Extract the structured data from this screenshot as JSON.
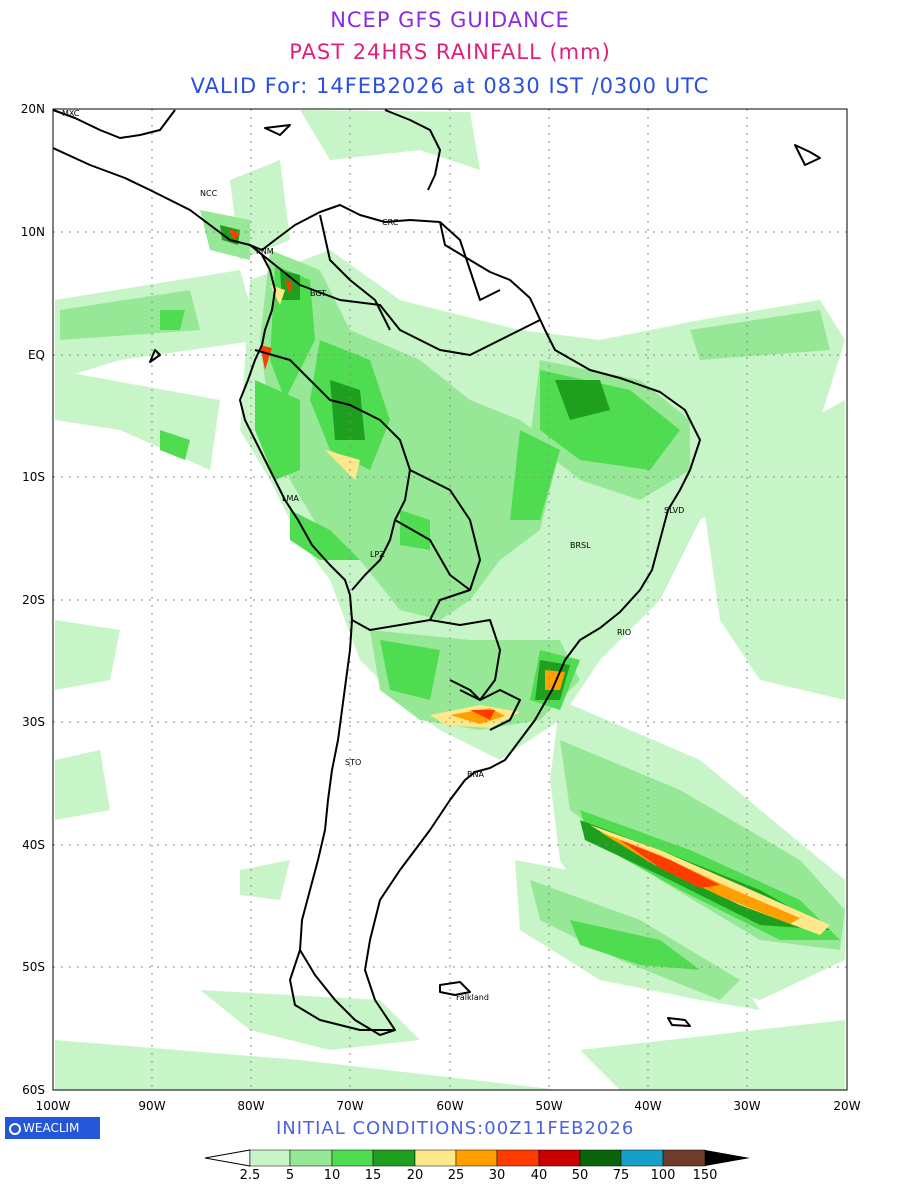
{
  "header": {
    "line1": "NCEP GFS GUIDANCE",
    "line2": "PAST 24HRS RAINFALL (mm)",
    "line3": "VALID For: 14FEB2026 at 0830 IST /0300 UTC"
  },
  "map": {
    "lat_labels": [
      "20N",
      "10N",
      "EQ",
      "10S",
      "20S",
      "30S",
      "40S",
      "50S",
      "60S"
    ],
    "lon_labels": [
      "100W",
      "90W",
      "80W",
      "70W",
      "60W",
      "50W",
      "40W",
      "30W",
      "20W"
    ],
    "places": [
      "MXC",
      "NCC",
      "CRC",
      "PNM",
      "BGT",
      "LMA",
      "LPZ",
      "BRSL",
      "SLVD",
      "RIO",
      "STO",
      "BNA",
      "Falkland"
    ]
  },
  "footer": {
    "brand": "WEACLIM",
    "initial_conditions": "INITIAL  CONDITIONS:00Z11FEB2026"
  },
  "legend": {
    "ticks": [
      "2.5",
      "5",
      "10",
      "15",
      "20",
      "25",
      "30",
      "40",
      "50",
      "75",
      "100",
      "150"
    ],
    "colors": [
      "#ffffff",
      "#c8f5c8",
      "#96e896",
      "#50dc50",
      "#1ea01e",
      "#ffe88c",
      "#ffa000",
      "#ff3c00",
      "#c80000",
      "#0a640a",
      "#14a0c8",
      "#6e3c28",
      "#000000"
    ]
  }
}
